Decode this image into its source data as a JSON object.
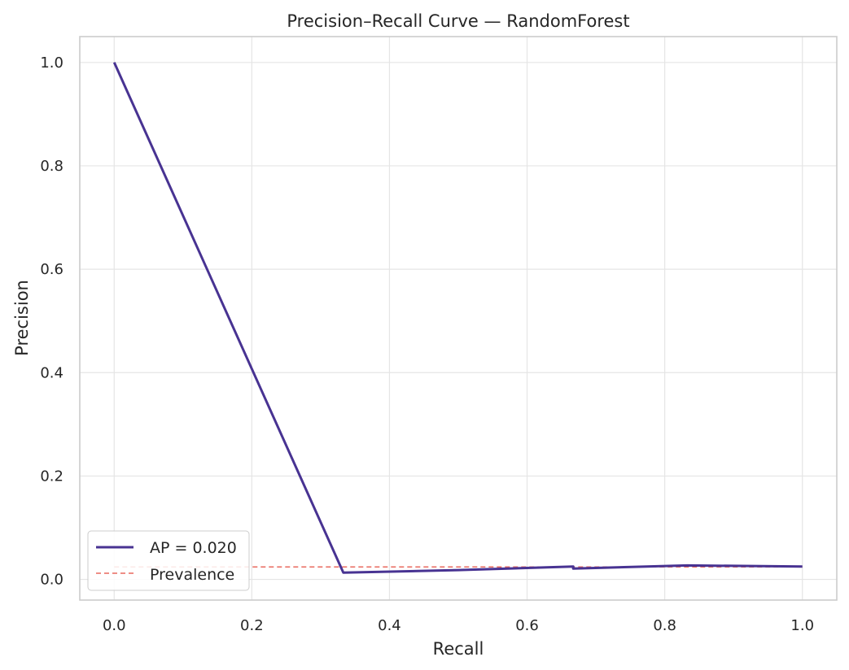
{
  "chart_data": {
    "type": "line",
    "title": "Precision–Recall Curve — RandomForest",
    "xlabel": "Recall",
    "ylabel": "Precision",
    "xlim": [
      -0.05,
      1.05
    ],
    "ylim": [
      -0.04,
      1.05
    ],
    "xticks": [
      "0.0",
      "0.2",
      "0.4",
      "0.6",
      "0.8",
      "1.0"
    ],
    "yticks": [
      "0.0",
      "0.2",
      "0.4",
      "0.6",
      "0.8",
      "1.0"
    ],
    "grid": true,
    "legend_position": "lower-left",
    "series": [
      {
        "name": "AP = 0.020",
        "style": "solid",
        "color": "#483392",
        "points": [
          {
            "x": 0.0,
            "y": 1.0
          },
          {
            "x": 0.333,
            "y": 0.013
          },
          {
            "x": 0.5,
            "y": 0.018
          },
          {
            "x": 0.667,
            "y": 0.025
          },
          {
            "x": 0.667,
            "y": 0.021
          },
          {
            "x": 0.833,
            "y": 0.027
          },
          {
            "x": 1.0,
            "y": 0.025
          }
        ]
      },
      {
        "name": "Prevalence",
        "style": "dashed",
        "color": "#e8695e",
        "points": [
          {
            "x": 0.0,
            "y": 0.024
          },
          {
            "x": 1.0,
            "y": 0.024
          }
        ]
      }
    ]
  }
}
